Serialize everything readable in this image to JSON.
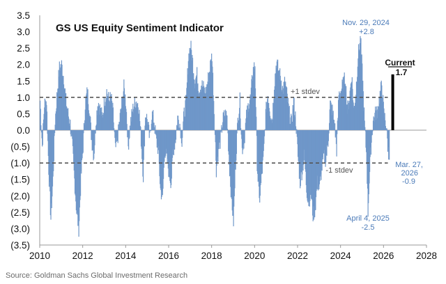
{
  "chart_data": {
    "type": "bar",
    "title": "GS US Equity Sentiment Indicator",
    "source": "Source: Goldman Sachs Global Investment Research",
    "xlim": [
      2010,
      2028
    ],
    "ylim": [
      -3.5,
      3.5
    ],
    "y_ticks": [
      3.5,
      3.0,
      2.5,
      2.0,
      1.5,
      1.0,
      0.5,
      0.0,
      -0.5,
      -1.0,
      -1.5,
      -2.0,
      -2.5,
      -3.0,
      -3.5
    ],
    "y_tick_labels": [
      "3.5",
      "3.0",
      "2.5",
      "2.0",
      "1.5",
      "1.0",
      "0.5",
      "0.0",
      "(0.5)",
      "(1.0)",
      "(1.5)",
      "(2.0)",
      "(2.5)",
      "(3.0)",
      "(3.5)"
    ],
    "x_ticks": [
      2010,
      2012,
      2014,
      2016,
      2018,
      2020,
      2022,
      2024,
      2026,
      2028
    ],
    "x_tick_labels": [
      "2010",
      "2012",
      "2014",
      "2016",
      "2018",
      "2020",
      "2022",
      "2024",
      "2026",
      "2028"
    ],
    "reference_lines": [
      {
        "y": 1.0,
        "label": "+1 stdev"
      },
      {
        "y": -1.0,
        "label": "-1 stdev"
      }
    ],
    "annotations": {
      "peak": {
        "date_label": "Nov. 29, 2024",
        "value_label": "+2.8",
        "x": 2024.91,
        "y": 2.8
      },
      "trough": {
        "date_label": "April 4, 2025",
        "value_label": "-2.5",
        "x": 2025.26,
        "y": -2.5
      },
      "latest": {
        "date_line1": "Mar. 27,",
        "date_line2": "2026",
        "value_label": "-0.9",
        "x": 2026.23,
        "y": -0.9
      },
      "current": {
        "label": "Current",
        "value_label": "1.7",
        "x": 2026.3,
        "y": 1.7
      }
    },
    "series": [
      {
        "values_approx": [
          [
            2010.0,
            0.9
          ],
          [
            2010.1,
            -0.5
          ],
          [
            2010.2,
            0.8
          ],
          [
            2010.3,
            0.9
          ],
          [
            2010.4,
            -1.2
          ],
          [
            2010.5,
            -2.7
          ],
          [
            2010.6,
            -1.5
          ],
          [
            2010.7,
            0.3
          ],
          [
            2010.8,
            1.2
          ],
          [
            2010.9,
            1.9
          ],
          [
            2011.0,
            2.0
          ],
          [
            2011.1,
            1.6
          ],
          [
            2011.2,
            0.9
          ],
          [
            2011.3,
            0.5
          ],
          [
            2011.4,
            0.2
          ],
          [
            2011.5,
            -0.5
          ],
          [
            2011.6,
            -1.5
          ],
          [
            2011.7,
            -2.5
          ],
          [
            2011.8,
            -3.0
          ],
          [
            2011.9,
            -1.5
          ],
          [
            2012.0,
            -0.5
          ],
          [
            2012.1,
            0.8
          ],
          [
            2012.2,
            1.2
          ],
          [
            2012.3,
            0.6
          ],
          [
            2012.4,
            -0.3
          ],
          [
            2012.5,
            -0.8
          ],
          [
            2012.6,
            0.3
          ],
          [
            2012.7,
            0.9
          ],
          [
            2012.8,
            0.6
          ],
          [
            2012.9,
            0.4
          ],
          [
            2013.0,
            0.9
          ],
          [
            2013.1,
            1.2
          ],
          [
            2013.2,
            0.9
          ],
          [
            2013.3,
            1.0
          ],
          [
            2013.4,
            0.5
          ],
          [
            2013.5,
            -0.6
          ],
          [
            2013.6,
            -0.3
          ],
          [
            2013.7,
            0.3
          ],
          [
            2013.8,
            0.8
          ],
          [
            2013.9,
            1.3
          ],
          [
            2014.0,
            0.8
          ],
          [
            2014.1,
            -0.5
          ],
          [
            2014.2,
            0.2
          ],
          [
            2014.3,
            0.6
          ],
          [
            2014.4,
            0.8
          ],
          [
            2014.5,
            0.9
          ],
          [
            2014.6,
            0.7
          ],
          [
            2014.7,
            -0.3
          ],
          [
            2014.8,
            -1.4
          ],
          [
            2014.9,
            0.5
          ],
          [
            2015.0,
            0.3
          ],
          [
            2015.1,
            -0.3
          ],
          [
            2015.2,
            0.5
          ],
          [
            2015.3,
            0.3
          ],
          [
            2015.4,
            -0.3
          ],
          [
            2015.5,
            -0.6
          ],
          [
            2015.6,
            -1.8
          ],
          [
            2015.7,
            -2.1
          ],
          [
            2015.8,
            -0.6
          ],
          [
            2015.9,
            -0.9
          ],
          [
            2016.0,
            -1.3
          ],
          [
            2016.1,
            -1.6
          ],
          [
            2016.2,
            -0.6
          ],
          [
            2016.3,
            -0.3
          ],
          [
            2016.4,
            0.4
          ],
          [
            2016.5,
            0.2
          ],
          [
            2016.6,
            -0.3
          ],
          [
            2016.7,
            0.5
          ],
          [
            2016.8,
            0.9
          ],
          [
            2016.9,
            2.2
          ],
          [
            2017.0,
            2.6
          ],
          [
            2017.1,
            2.1
          ],
          [
            2017.2,
            1.5
          ],
          [
            2017.3,
            1.7
          ],
          [
            2017.4,
            1.2
          ],
          [
            2017.5,
            1.4
          ],
          [
            2017.6,
            1.3
          ],
          [
            2017.7,
            1.1
          ],
          [
            2017.8,
            1.5
          ],
          [
            2017.9,
            1.9
          ],
          [
            2018.0,
            2.3
          ],
          [
            2018.1,
            0.6
          ],
          [
            2018.2,
            -1.2
          ],
          [
            2018.3,
            -0.6
          ],
          [
            2018.4,
            -0.3
          ],
          [
            2018.5,
            0.3
          ],
          [
            2018.6,
            0.5
          ],
          [
            2018.7,
            0.4
          ],
          [
            2018.8,
            -1.0
          ],
          [
            2018.9,
            -2.0
          ],
          [
            2019.0,
            -2.8
          ],
          [
            2019.1,
            -1.0
          ],
          [
            2019.2,
            0.3
          ],
          [
            2019.3,
            0.9
          ],
          [
            2019.4,
            -0.6
          ],
          [
            2019.5,
            -0.3
          ],
          [
            2019.6,
            0.4
          ],
          [
            2019.7,
            0.8
          ],
          [
            2019.8,
            1.0
          ],
          [
            2019.9,
            1.8
          ],
          [
            2020.0,
            2.0
          ],
          [
            2020.1,
            -1.0
          ],
          [
            2020.2,
            -2.2
          ],
          [
            2020.3,
            -1.5
          ],
          [
            2020.4,
            -0.8
          ],
          [
            2020.5,
            0.5
          ],
          [
            2020.6,
            1.1
          ],
          [
            2020.7,
            0.6
          ],
          [
            2020.8,
            0.3
          ],
          [
            2020.9,
            1.4
          ],
          [
            2021.0,
            2.1
          ],
          [
            2021.1,
            1.8
          ],
          [
            2021.2,
            1.6
          ],
          [
            2021.3,
            1.2
          ],
          [
            2021.4,
            1.5
          ],
          [
            2021.5,
            1.0
          ],
          [
            2021.6,
            0.5
          ],
          [
            2021.7,
            0.2
          ],
          [
            2021.8,
            0.9
          ],
          [
            2021.9,
            0.3
          ],
          [
            2022.0,
            -0.8
          ],
          [
            2022.1,
            -1.6
          ],
          [
            2022.2,
            -1.2
          ],
          [
            2022.3,
            -0.8
          ],
          [
            2022.4,
            -1.8
          ],
          [
            2022.5,
            -2.2
          ],
          [
            2022.6,
            -1.9
          ],
          [
            2022.7,
            -2.6
          ],
          [
            2022.8,
            -2.4
          ],
          [
            2022.9,
            -1.6
          ],
          [
            2023.0,
            -1.8
          ],
          [
            2023.1,
            -1.2
          ],
          [
            2023.2,
            -0.8
          ],
          [
            2023.3,
            -0.9
          ],
          [
            2023.4,
            -0.4
          ],
          [
            2023.5,
            0.8
          ],
          [
            2023.6,
            0.6
          ],
          [
            2023.7,
            0.2
          ],
          [
            2023.8,
            -0.6
          ],
          [
            2023.9,
            1.1
          ],
          [
            2024.0,
            1.2
          ],
          [
            2024.1,
            1.4
          ],
          [
            2024.2,
            1.6
          ],
          [
            2024.3,
            0.6
          ],
          [
            2024.4,
            1.0
          ],
          [
            2024.5,
            1.7
          ],
          [
            2024.6,
            0.6
          ],
          [
            2024.7,
            1.2
          ],
          [
            2024.8,
            2.3
          ],
          [
            2024.91,
            2.8
          ],
          [
            2025.0,
            1.7
          ],
          [
            2025.1,
            0.2
          ],
          [
            2025.2,
            -0.9
          ],
          [
            2025.26,
            -2.5
          ],
          [
            2025.3,
            -1.8
          ],
          [
            2025.4,
            -0.5
          ],
          [
            2025.5,
            0.3
          ],
          [
            2025.6,
            0.5
          ],
          [
            2025.7,
            0.6
          ],
          [
            2025.8,
            1.0
          ],
          [
            2025.9,
            1.4
          ],
          [
            2026.0,
            0.5
          ],
          [
            2026.1,
            0.2
          ],
          [
            2026.23,
            -0.9
          ]
        ]
      }
    ]
  },
  "colors": {
    "bars": "#6f97c9",
    "annotation_text": "#4a7ab8",
    "current_bar": "#000000",
    "reference_line": "#555555"
  }
}
